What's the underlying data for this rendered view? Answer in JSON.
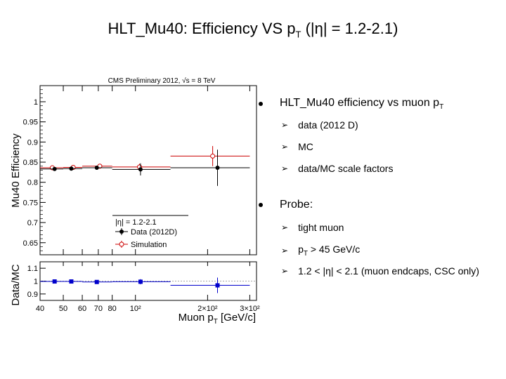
{
  "slide_title": {
    "prefix": "HLT_Mu40: Efficiency VS p",
    "sub": "T",
    "suffix": " (|η| = 1.2-2.1)"
  },
  "bullets": {
    "main1": {
      "text": "HLT_Mu40 efficiency vs muon p",
      "sub": "T"
    },
    "main1_items": [
      "data  (2012 D)",
      "MC",
      "data/MC scale factors"
    ],
    "main2": "Probe:",
    "main2_items": {
      "item1": "tight muon",
      "item2_prefix": "p",
      "item2_sub": "T",
      "item2_suffix": " > 45 GeV/c",
      "item3": "1.2 < |η| < 2.1  (muon endcaps, CSC only)"
    }
  },
  "colors": {
    "data": "#000000",
    "simulation": "#cc0000",
    "ratio": "#0000cc"
  },
  "chart_data": [
    {
      "type": "scatter",
      "banner": "CMS Preliminary 2012,  √s = 8 TeV",
      "ylabel": "Mu40 Efficiency",
      "xscale": "log",
      "xlim": [
        40,
        320
      ],
      "ylim": [
        0.62,
        1.04
      ],
      "yticks": [
        "0.65",
        "0.7",
        "0.75",
        "0.8",
        "0.85",
        "0.9",
        "0.95",
        "1"
      ],
      "legend": {
        "title": "|η| = 1.2-2.1",
        "entries": [
          "Data (2012D)",
          "Simulation"
        ]
      },
      "series": [
        {
          "name": "Data (2012D)",
          "color": "#000000",
          "marker": "filled-circle",
          "points": [
            {
              "x": 46,
              "xlow": 40,
              "xhigh": 50,
              "y": 0.833,
              "err": 0.004
            },
            {
              "x": 54,
              "xlow": 50,
              "xhigh": 60,
              "y": 0.834,
              "err": 0.003
            },
            {
              "x": 69,
              "xlow": 60,
              "xhigh": 80,
              "y": 0.836,
              "err": 0.005
            },
            {
              "x": 105,
              "xlow": 80,
              "xhigh": 140,
              "y": 0.832,
              "err": 0.015
            },
            {
              "x": 220,
              "xlow": 140,
              "xhigh": 300,
              "y": 0.836,
              "err": 0.045
            }
          ]
        },
        {
          "name": "Simulation",
          "color": "#cc0000",
          "marker": "open-circle",
          "points": [
            {
              "x": 45,
              "xlow": 40,
              "xhigh": 50,
              "y": 0.836,
              "err": 0.002
            },
            {
              "x": 55,
              "xlow": 50,
              "xhigh": 60,
              "y": 0.837,
              "err": 0.002
            },
            {
              "x": 71,
              "xlow": 60,
              "xhigh": 80,
              "y": 0.84,
              "err": 0.003
            },
            {
              "x": 104,
              "xlow": 80,
              "xhigh": 140,
              "y": 0.838,
              "err": 0.008
            },
            {
              "x": 210,
              "xlow": 140,
              "xhigh": 300,
              "y": 0.865,
              "err": 0.025
            }
          ]
        }
      ]
    },
    {
      "type": "scatter",
      "ylabel": "Data/MC",
      "xlabel": "Muon p",
      "xlabel_sub": "T",
      "xlabel_unit": " [GeV/c]",
      "xscale": "log",
      "xlim": [
        40,
        320
      ],
      "ylim": [
        0.85,
        1.15
      ],
      "yticks": [
        "0.9",
        "1",
        "1.1"
      ],
      "xticks": [
        {
          "v": 40,
          "label": "40"
        },
        {
          "v": 50,
          "label": "50"
        },
        {
          "v": 60,
          "label": "60"
        },
        {
          "v": 70,
          "label": "70"
        },
        {
          "v": 80,
          "label": "80"
        },
        {
          "v": 100,
          "label": "10²"
        },
        {
          "v": 200,
          "label": "2×10²"
        },
        {
          "v": 300,
          "label": "3×10²"
        }
      ],
      "series": [
        {
          "name": "data/MC",
          "color": "#0000cc",
          "marker": "filled-square",
          "points": [
            {
              "x": 46,
              "xlow": 40,
              "xhigh": 50,
              "y": 0.997,
              "err": 0.004
            },
            {
              "x": 54,
              "xlow": 50,
              "xhigh": 60,
              "y": 0.997,
              "err": 0.004
            },
            {
              "x": 69,
              "xlow": 60,
              "xhigh": 80,
              "y": 0.993,
              "err": 0.006
            },
            {
              "x": 105,
              "xlow": 80,
              "xhigh": 140,
              "y": 0.995,
              "err": 0.02
            },
            {
              "x": 220,
              "xlow": 140,
              "xhigh": 300,
              "y": 0.967,
              "err": 0.06
            }
          ]
        }
      ]
    }
  ]
}
